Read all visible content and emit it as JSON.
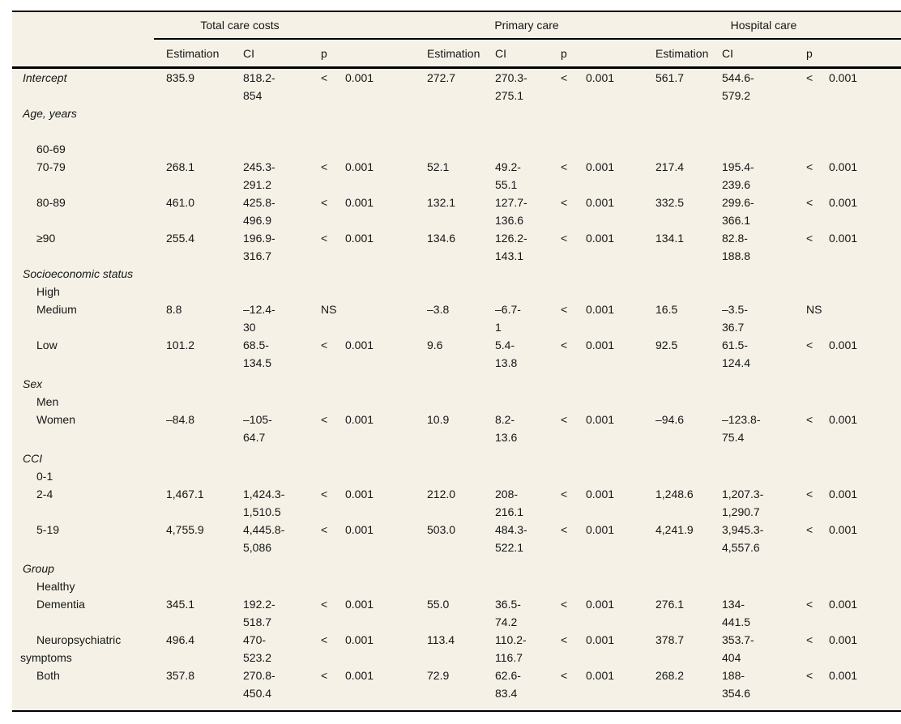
{
  "table": {
    "groups": [
      "Total care costs",
      "Primary care",
      "Hospital care"
    ],
    "col_headers": {
      "estimation": "Estimation",
      "ci": "CI",
      "p": "p"
    },
    "p_threshold": "0.001",
    "rows": [
      {
        "label": "Intercept",
        "style": "section",
        "cells": [
          {
            "est": "835.9",
            "ci1": "818.2-",
            "ci2": "854",
            "ps": "<",
            "pv": "0.001"
          },
          {
            "est": "272.7",
            "ci1": "270.3-",
            "ci2": "275.1",
            "ps": "<",
            "pv": "0.001"
          },
          {
            "est": "561.7",
            "ci1": "544.6-",
            "ci2": "579.2",
            "ps": "<",
            "pv": "0.001"
          }
        ]
      },
      {
        "label": "Age, years",
        "style": "section",
        "cells": null
      },
      {
        "label": "",
        "style": "spacer",
        "cells": null
      },
      {
        "label": "60-69",
        "style": "item",
        "cells": null
      },
      {
        "label": "70-79",
        "style": "item",
        "cells": [
          {
            "est": "268.1",
            "ci1": "245.3-",
            "ci2": "291.2",
            "ps": "<",
            "pv": "0.001"
          },
          {
            "est": "52.1",
            "ci1": "49.2-",
            "ci2": "55.1",
            "ps": "<",
            "pv": "0.001"
          },
          {
            "est": "217.4",
            "ci1": "195.4-",
            "ci2": "239.6",
            "ps": "<",
            "pv": "0.001"
          }
        ]
      },
      {
        "label": "80-89",
        "style": "item",
        "cells": [
          {
            "est": "461.0",
            "ci1": "425.8-",
            "ci2": "496.9",
            "ps": "<",
            "pv": "0.001"
          },
          {
            "est": "132.1",
            "ci1": "127.7-",
            "ci2": "136.6",
            "ps": "<",
            "pv": "0.001"
          },
          {
            "est": "332.5",
            "ci1": "299.6-",
            "ci2": "366.1",
            "ps": "<",
            "pv": "0.001"
          }
        ]
      },
      {
        "label": "≥90",
        "style": "item",
        "cells": [
          {
            "est": "255.4",
            "ci1": "196.9-",
            "ci2": "316.7",
            "ps": "<",
            "pv": "0.001"
          },
          {
            "est": "134.6",
            "ci1": "126.2-",
            "ci2": "143.1",
            "ps": "<",
            "pv": "0.001"
          },
          {
            "est": "134.1",
            "ci1": "82.8-",
            "ci2": "188.8",
            "ps": "<",
            "pv": "0.001"
          }
        ]
      },
      {
        "label": "Socioeconomic status",
        "style": "section",
        "cells": null
      },
      {
        "label": "High",
        "style": "item",
        "cells": null
      },
      {
        "label": "Medium",
        "style": "item",
        "cells": [
          {
            "est": "8.8",
            "ci1": "–12.4-",
            "ci2": "30",
            "ps": "NS",
            "pv": ""
          },
          {
            "est": "–3.8",
            "ci1": "–6.7-",
            "ci2": "1",
            "ps": "<",
            "pv": "0.001"
          },
          {
            "est": "16.5",
            "ci1": "–3.5-",
            "ci2": "36.7",
            "ps": "NS",
            "pv": ""
          }
        ]
      },
      {
        "label": "Low",
        "style": "item",
        "cells": [
          {
            "est": "101.2",
            "ci1": "68.5-",
            "ci2": "134.5",
            "ps": "<",
            "pv": "0.001"
          },
          {
            "est": "9.6",
            "ci1": "5.4-",
            "ci2": "13.8",
            "ps": "<",
            "pv": "0.001"
          },
          {
            "est": "92.5",
            "ci1": "61.5-",
            "ci2": "124.4",
            "ps": "<",
            "pv": "0.001"
          }
        ]
      },
      {
        "label": "Sex",
        "style": "section mt4",
        "cells": null
      },
      {
        "label": "Men",
        "style": "item",
        "cells": null
      },
      {
        "label": "Women",
        "style": "item",
        "cells": [
          {
            "est": "–84.8",
            "ci1": "–105-",
            "ci2": "64.7",
            "ps": "<",
            "pv": "0.001"
          },
          {
            "est": "10.9",
            "ci1": "8.2-",
            "ci2": "13.6",
            "ps": "<",
            "pv": "0.001"
          },
          {
            "est": "–94.6",
            "ci1": "–123.8-",
            "ci2": "75.4",
            "ps": "<",
            "pv": "0.001"
          }
        ]
      },
      {
        "label": "CCI",
        "style": "section mt4",
        "cells": null
      },
      {
        "label": "0-1",
        "style": "item",
        "cells": null
      },
      {
        "label": "2-4",
        "style": "item",
        "cells": [
          {
            "est": "1,467.1",
            "ci1": "1,424.3-",
            "ci2": "1,510.5",
            "ps": "<",
            "pv": "0.001"
          },
          {
            "est": "212.0",
            "ci1": "208-",
            "ci2": "216.1",
            "ps": "<",
            "pv": "0.001"
          },
          {
            "est": "1,248.6",
            "ci1": "1,207.3-",
            "ci2": "1,290.7",
            "ps": "<",
            "pv": "0.001"
          }
        ]
      },
      {
        "label": "5-19",
        "style": "item",
        "cells": [
          {
            "est": "4,755.9",
            "ci1": "4,445.8-",
            "ci2": "5,086",
            "ps": "<",
            "pv": "0.001"
          },
          {
            "est": "503.0",
            "ci1": "484.3-",
            "ci2": "522.1",
            "ps": "<",
            "pv": "0.001"
          },
          {
            "est": "4,241.9",
            "ci1": "3,945.3-",
            "ci2": "4,557.6",
            "ps": "<",
            "pv": "0.001"
          }
        ]
      },
      {
        "label": "Group",
        "style": "section mt4",
        "cells": null
      },
      {
        "label": "Healthy",
        "style": "item",
        "cells": null
      },
      {
        "label": "Dementia",
        "style": "item",
        "cells": [
          {
            "est": "345.1",
            "ci1": "192.2-",
            "ci2": "518.7",
            "ps": "<",
            "pv": "0.001"
          },
          {
            "est": "55.0",
            "ci1": "36.5-",
            "ci2": "74.2",
            "ps": "<",
            "pv": "0.001"
          },
          {
            "est": "276.1",
            "ci1": "134-",
            "ci2": "441.5",
            "ps": "<",
            "pv": "0.001"
          }
        ]
      },
      {
        "label": "Neuropsychiatric symptoms",
        "style": "item",
        "cells": [
          {
            "est": "496.4",
            "ci1": "470-",
            "ci2": "523.2",
            "ps": "<",
            "pv": "0.001"
          },
          {
            "est": "113.4",
            "ci1": "110.2-",
            "ci2": "116.7",
            "ps": "<",
            "pv": "0.001"
          },
          {
            "est": "378.7",
            "ci1": "353.7-",
            "ci2": "404",
            "ps": "<",
            "pv": "0.001"
          }
        ]
      },
      {
        "label": "Both",
        "style": "item",
        "cells": [
          {
            "est": "357.8",
            "ci1": "270.8-",
            "ci2": "450.4",
            "ps": "<",
            "pv": "0.001"
          },
          {
            "est": "72.9",
            "ci1": "62.6-",
            "ci2": "83.4",
            "ps": "<",
            "pv": "0.001"
          },
          {
            "est": "268.2",
            "ci1": "188-",
            "ci2": "354.6",
            "ps": "<",
            "pv": "0.001"
          }
        ]
      }
    ]
  }
}
